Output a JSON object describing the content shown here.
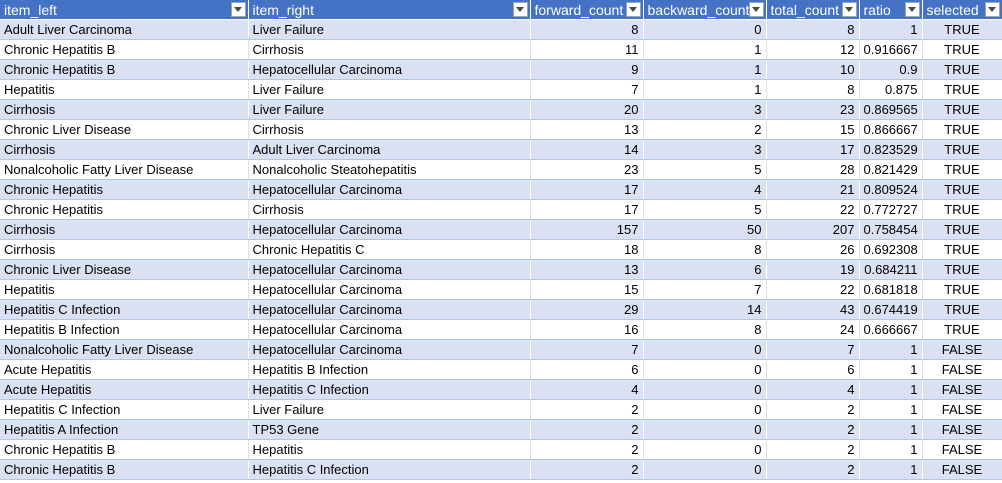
{
  "sheet": {
    "columns": [
      "item_left",
      "item_right",
      "forward_count",
      "backward_count",
      "total_count",
      "ratio",
      "selected"
    ],
    "rows": [
      [
        "Adult Liver Carcinoma",
        "Liver Failure",
        "8",
        "0",
        "8",
        "1",
        "TRUE"
      ],
      [
        "Chronic Hepatitis B",
        "Cirrhosis",
        "11",
        "1",
        "12",
        "0.916667",
        "TRUE"
      ],
      [
        "Chronic Hepatitis B",
        "Hepatocellular Carcinoma",
        "9",
        "1",
        "10",
        "0.9",
        "TRUE"
      ],
      [
        "Hepatitis",
        "Liver Failure",
        "7",
        "1",
        "8",
        "0.875",
        "TRUE"
      ],
      [
        "Cirrhosis",
        "Liver Failure",
        "20",
        "3",
        "23",
        "0.869565",
        "TRUE"
      ],
      [
        "Chronic Liver Disease",
        "Cirrhosis",
        "13",
        "2",
        "15",
        "0.866667",
        "TRUE"
      ],
      [
        "Cirrhosis",
        "Adult Liver Carcinoma",
        "14",
        "3",
        "17",
        "0.823529",
        "TRUE"
      ],
      [
        "Nonalcoholic Fatty Liver Disease",
        "Nonalcoholic Steatohepatitis",
        "23",
        "5",
        "28",
        "0.821429",
        "TRUE"
      ],
      [
        "Chronic Hepatitis",
        "Hepatocellular Carcinoma",
        "17",
        "4",
        "21",
        "0.809524",
        "TRUE"
      ],
      [
        "Chronic Hepatitis",
        "Cirrhosis",
        "17",
        "5",
        "22",
        "0.772727",
        "TRUE"
      ],
      [
        "Cirrhosis",
        "Hepatocellular Carcinoma",
        "157",
        "50",
        "207",
        "0.758454",
        "TRUE"
      ],
      [
        "Cirrhosis",
        "Chronic Hepatitis C",
        "18",
        "8",
        "26",
        "0.692308",
        "TRUE"
      ],
      [
        "Chronic Liver Disease",
        "Hepatocellular Carcinoma",
        "13",
        "6",
        "19",
        "0.684211",
        "TRUE"
      ],
      [
        "Hepatitis",
        "Hepatocellular Carcinoma",
        "15",
        "7",
        "22",
        "0.681818",
        "TRUE"
      ],
      [
        "Hepatitis C Infection",
        "Hepatocellular Carcinoma",
        "29",
        "14",
        "43",
        "0.674419",
        "TRUE"
      ],
      [
        "Hepatitis B Infection",
        "Hepatocellular Carcinoma",
        "16",
        "8",
        "24",
        "0.666667",
        "TRUE"
      ],
      [
        "Nonalcoholic Fatty Liver Disease",
        "Hepatocellular Carcinoma",
        "7",
        "0",
        "7",
        "1",
        "FALSE"
      ],
      [
        "Acute Hepatitis",
        "Hepatitis B Infection",
        "6",
        "0",
        "6",
        "1",
        "FALSE"
      ],
      [
        "Acute Hepatitis",
        "Hepatitis C Infection",
        "4",
        "0",
        "4",
        "1",
        "FALSE"
      ],
      [
        "Hepatitis C Infection",
        "Liver Failure",
        "2",
        "0",
        "2",
        "1",
        "FALSE"
      ],
      [
        "Hepatitis A Infection",
        "TP53 Gene",
        "2",
        "0",
        "2",
        "1",
        "FALSE"
      ],
      [
        "Chronic Hepatitis B",
        "Hepatitis",
        "2",
        "0",
        "2",
        "1",
        "FALSE"
      ],
      [
        "Chronic Hepatitis B",
        "Hepatitis C Infection",
        "2",
        "0",
        "2",
        "1",
        "FALSE"
      ]
    ]
  },
  "icons": {
    "filter": "filter-dropdown-icon"
  },
  "colors": {
    "header_bg": "#4472c4",
    "header_text": "#ffffff",
    "band_row": "#d9e1f2",
    "plain_row": "#ffffff"
  }
}
